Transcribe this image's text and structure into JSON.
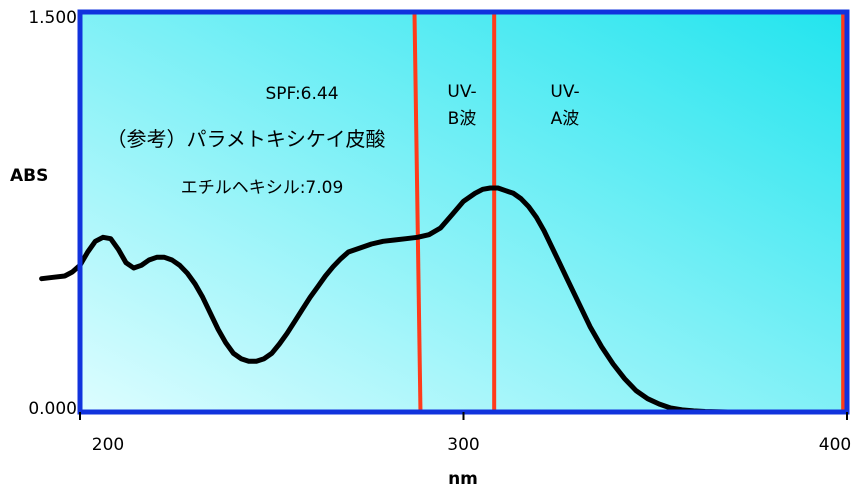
{
  "chart_data": {
    "type": "line",
    "xlabel": "nm",
    "ylabel": "ABS",
    "xlim": [
      200,
      400
    ],
    "ylim": [
      0.0,
      1.5
    ],
    "x_ticks": [
      {
        "value": 200,
        "label": "200"
      },
      {
        "value": 300,
        "label": "300"
      },
      {
        "value": 400,
        "label": "400"
      }
    ],
    "y_ticks": [
      {
        "value": 0.0,
        "label": "0.000"
      },
      {
        "value": 1.5,
        "label": "1.500"
      }
    ],
    "grid": false,
    "series": [
      {
        "x": [
          190,
          193,
          196,
          198,
          200,
          202,
          204,
          206,
          208,
          210,
          212,
          214,
          216,
          218,
          220,
          222,
          224,
          226,
          228,
          230,
          232,
          234,
          236,
          238,
          240,
          242,
          244,
          246,
          248,
          250,
          252,
          254,
          256,
          258,
          260,
          262,
          264,
          266,
          268,
          270,
          273,
          276,
          279,
          282,
          285,
          288,
          291,
          294,
          297,
          300,
          303,
          305,
          307,
          309,
          311,
          313,
          315,
          317,
          319,
          321,
          323,
          325,
          327,
          329,
          331,
          333,
          336,
          339,
          342,
          345,
          348,
          351,
          354,
          357,
          360,
          363,
          366,
          369,
          372,
          375,
          378
        ],
        "y": [
          0.5,
          0.505,
          0.51,
          0.525,
          0.55,
          0.6,
          0.64,
          0.655,
          0.65,
          0.61,
          0.56,
          0.54,
          0.55,
          0.57,
          0.58,
          0.58,
          0.57,
          0.55,
          0.52,
          0.48,
          0.43,
          0.37,
          0.31,
          0.26,
          0.22,
          0.2,
          0.19,
          0.19,
          0.2,
          0.22,
          0.255,
          0.295,
          0.34,
          0.385,
          0.43,
          0.47,
          0.51,
          0.545,
          0.575,
          0.6,
          0.615,
          0.63,
          0.64,
          0.645,
          0.65,
          0.655,
          0.665,
          0.69,
          0.74,
          0.79,
          0.82,
          0.835,
          0.84,
          0.84,
          0.83,
          0.82,
          0.8,
          0.77,
          0.73,
          0.68,
          0.62,
          0.56,
          0.5,
          0.44,
          0.38,
          0.32,
          0.245,
          0.18,
          0.125,
          0.08,
          0.05,
          0.03,
          0.015,
          0.008,
          0.004,
          0.002,
          0.001,
          0.0,
          0.0,
          0.0,
          0.0
        ],
        "color": "#000000"
      }
    ],
    "markers": [
      {
        "x": 288,
        "color": "#ff3b1a"
      },
      {
        "x": 308,
        "color": "#ff3b1a"
      },
      {
        "x": 399,
        "color": "#ff3b1a"
      }
    ],
    "annotations": {
      "spf": "SPF:6.44",
      "ref_line1": "（参考）パラメトキシケイ皮酸",
      "ref_line2": "エチルヘキシル:7.09",
      "uvb_line1": "UV-",
      "uvb_line2": "B波",
      "uva_line1": "UV-",
      "uva_line2": "A波"
    },
    "colors": {
      "frame": "#1133dd",
      "background_light": "#ddfdff",
      "background_dark": "#22e4ee",
      "curve": "#000000"
    }
  }
}
